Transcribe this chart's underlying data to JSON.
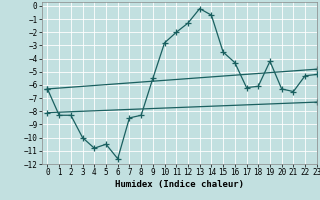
{
  "xlabel": "Humidex (Indice chaleur)",
  "xlim": [
    -0.5,
    23
  ],
  "ylim": [
    -12,
    0.3
  ],
  "xticks": [
    0,
    1,
    2,
    3,
    4,
    5,
    6,
    7,
    8,
    9,
    10,
    11,
    12,
    13,
    14,
    15,
    16,
    17,
    18,
    19,
    20,
    21,
    22,
    23
  ],
  "yticks": [
    0,
    -1,
    -2,
    -3,
    -4,
    -5,
    -6,
    -7,
    -8,
    -9,
    -10,
    -11,
    -12
  ],
  "bg_color": "#c2e0e0",
  "grid_color": "#ffffff",
  "line_color": "#1a6060",
  "line1_x": [
    0,
    1,
    2,
    3,
    4,
    5,
    6,
    7,
    8,
    9,
    10,
    11,
    12,
    13,
    14,
    15,
    16,
    17,
    18,
    19,
    20,
    21,
    22,
    23
  ],
  "line1_y": [
    -6.3,
    -8.3,
    -8.3,
    -10.0,
    -10.8,
    -10.5,
    -11.6,
    -8.5,
    -8.3,
    -5.5,
    -2.8,
    -2.0,
    -1.3,
    -0.2,
    -0.7,
    -3.5,
    -4.3,
    -6.2,
    -6.1,
    -4.2,
    -6.3,
    -6.5,
    -5.3,
    -5.2
  ],
  "line2_x": [
    0,
    23
  ],
  "line2_y": [
    -6.3,
    -4.8
  ],
  "line3_x": [
    0,
    23
  ],
  "line3_y": [
    -8.1,
    -7.3
  ],
  "marker": "+",
  "markersize": 4,
  "linewidth": 0.9,
  "tick_fontsize": 5.5,
  "xlabel_fontsize": 6.5
}
